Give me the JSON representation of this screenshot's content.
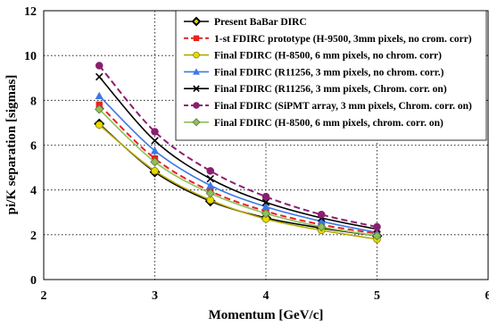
{
  "chart_data": {
    "type": "line",
    "xlabel": "Momentum [GeV/c]",
    "ylabel": "pi/K separation [sigmas]",
    "xlim": [
      2,
      6
    ],
    "ylim": [
      0,
      12
    ],
    "x_ticks": [
      "2",
      "3",
      "4",
      "5",
      "6"
    ],
    "y_ticks": [
      "0",
      "2",
      "4",
      "6",
      "8",
      "10",
      "12"
    ],
    "grid": true,
    "legend_position": "top-right",
    "series": [
      {
        "name": "Present BaBar DIRC",
        "color": "#000000",
        "marker": "diamond",
        "dash": false,
        "x": [
          2.5,
          3.0,
          3.5,
          4.0,
          4.5,
          5.0
        ],
        "y": [
          6.95,
          4.8,
          3.5,
          2.75,
          2.3,
          1.95
        ]
      },
      {
        "name": "1-st FDIRC prototype (H-9500, 3mm pixels, no crom. corr)",
        "color": "#e8231e",
        "marker": "square",
        "dash": true,
        "x": [
          2.5,
          3.0,
          3.5,
          4.0,
          4.5,
          5.0
        ],
        "y": [
          7.8,
          5.4,
          3.95,
          3.05,
          2.45,
          2.05
        ]
      },
      {
        "name": "Final FDIRC (H-8500, 6 mm pixels, no chrom. corr)",
        "color": "#e8d800",
        "marker": "circle",
        "dash": false,
        "x": [
          2.5,
          3.0,
          3.5,
          4.0,
          4.5,
          5.0
        ],
        "y": [
          6.9,
          4.85,
          3.55,
          2.7,
          2.2,
          1.8
        ]
      },
      {
        "name": "Final FDIRC (R11256, 3 mm pixels, no chrom. corr.)",
        "color": "#3b78e7",
        "marker": "triangle",
        "dash": false,
        "x": [
          2.5,
          3.0,
          3.5,
          4.0,
          4.5,
          5.0
        ],
        "y": [
          8.2,
          5.75,
          4.2,
          3.25,
          2.6,
          2.1
        ]
      },
      {
        "name": "Final FDIRC (R11256, 3 mm pixels, Chrom. corr. on)",
        "color": "#000000",
        "marker": "x",
        "dash": false,
        "x": [
          2.5,
          3.0,
          3.5,
          4.0,
          4.5,
          5.0
        ],
        "y": [
          9.05,
          6.2,
          4.5,
          3.45,
          2.75,
          2.25
        ]
      },
      {
        "name": "Final FDIRC (SiPMT array, 3 mm pixels, Chrom. corr. on)",
        "color": "#8b1e6f",
        "marker": "circle",
        "dash": true,
        "x": [
          2.5,
          3.0,
          3.5,
          4.0,
          4.5,
          5.0
        ],
        "y": [
          9.55,
          6.6,
          4.85,
          3.7,
          2.9,
          2.35
        ]
      },
      {
        "name": "Final FDIRC (H-8500, 6 mm pixels, chrom. corr. on)",
        "color": "#8fbf5a",
        "marker": "diamond",
        "dash": false,
        "x": [
          2.5,
          3.0,
          3.5,
          4.0,
          4.5,
          5.0
        ],
        "y": [
          7.6,
          5.25,
          3.85,
          2.95,
          2.35,
          1.95
        ]
      }
    ]
  }
}
